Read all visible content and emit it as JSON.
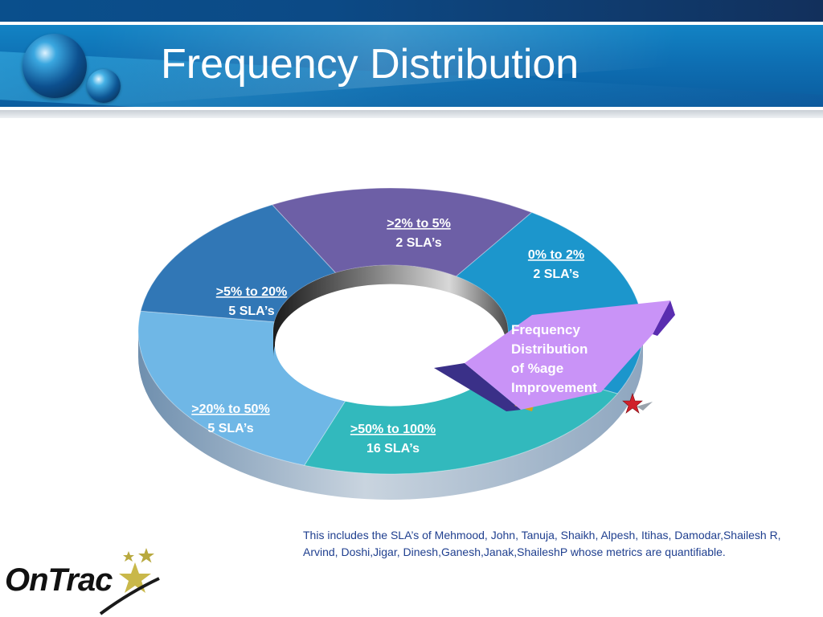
{
  "slide": {
    "title": "Frequency Distribution",
    "note": "This includes the SLA’s of Mehmood, John, Tanuja, Shaikh, Alpesh, Itihas, Damodar,Shailesh R, Arvind, Doshi,Jigar, Dinesh,Ganesh,Janak,ShaileshP whose metrics are quantifiable.",
    "logo_text": "OnTrac"
  },
  "chart_data": {
    "type": "pie",
    "variant": "3d-doughnut",
    "title": "Frequency Distribution of %age Improvement",
    "slices": [
      {
        "range": ">2% to 5%",
        "count_label": "2 SLA’s",
        "value": 2,
        "color": "#6d5fa6"
      },
      {
        "range": "0% to 2%",
        "count_label": "2 SLA’s",
        "value": 2,
        "color": "#1c96cc"
      },
      {
        "range": ">50% to 100%",
        "count_label": "16 SLA’s",
        "value": 16,
        "color": "#32b9bd"
      },
      {
        "range": ">20% to 50%",
        "count_label": "5 SLA’s",
        "value": 5,
        "color": "#6fb7e6"
      },
      {
        "range": ">5% to 20%",
        "count_label": "5 SLA’s",
        "value": 5,
        "color": "#3177b6"
      }
    ],
    "exploded_legend": {
      "text_lines": [
        "Frequency",
        "Distribution",
        "of %age",
        "Improvement"
      ],
      "color": "#c993f7"
    }
  }
}
